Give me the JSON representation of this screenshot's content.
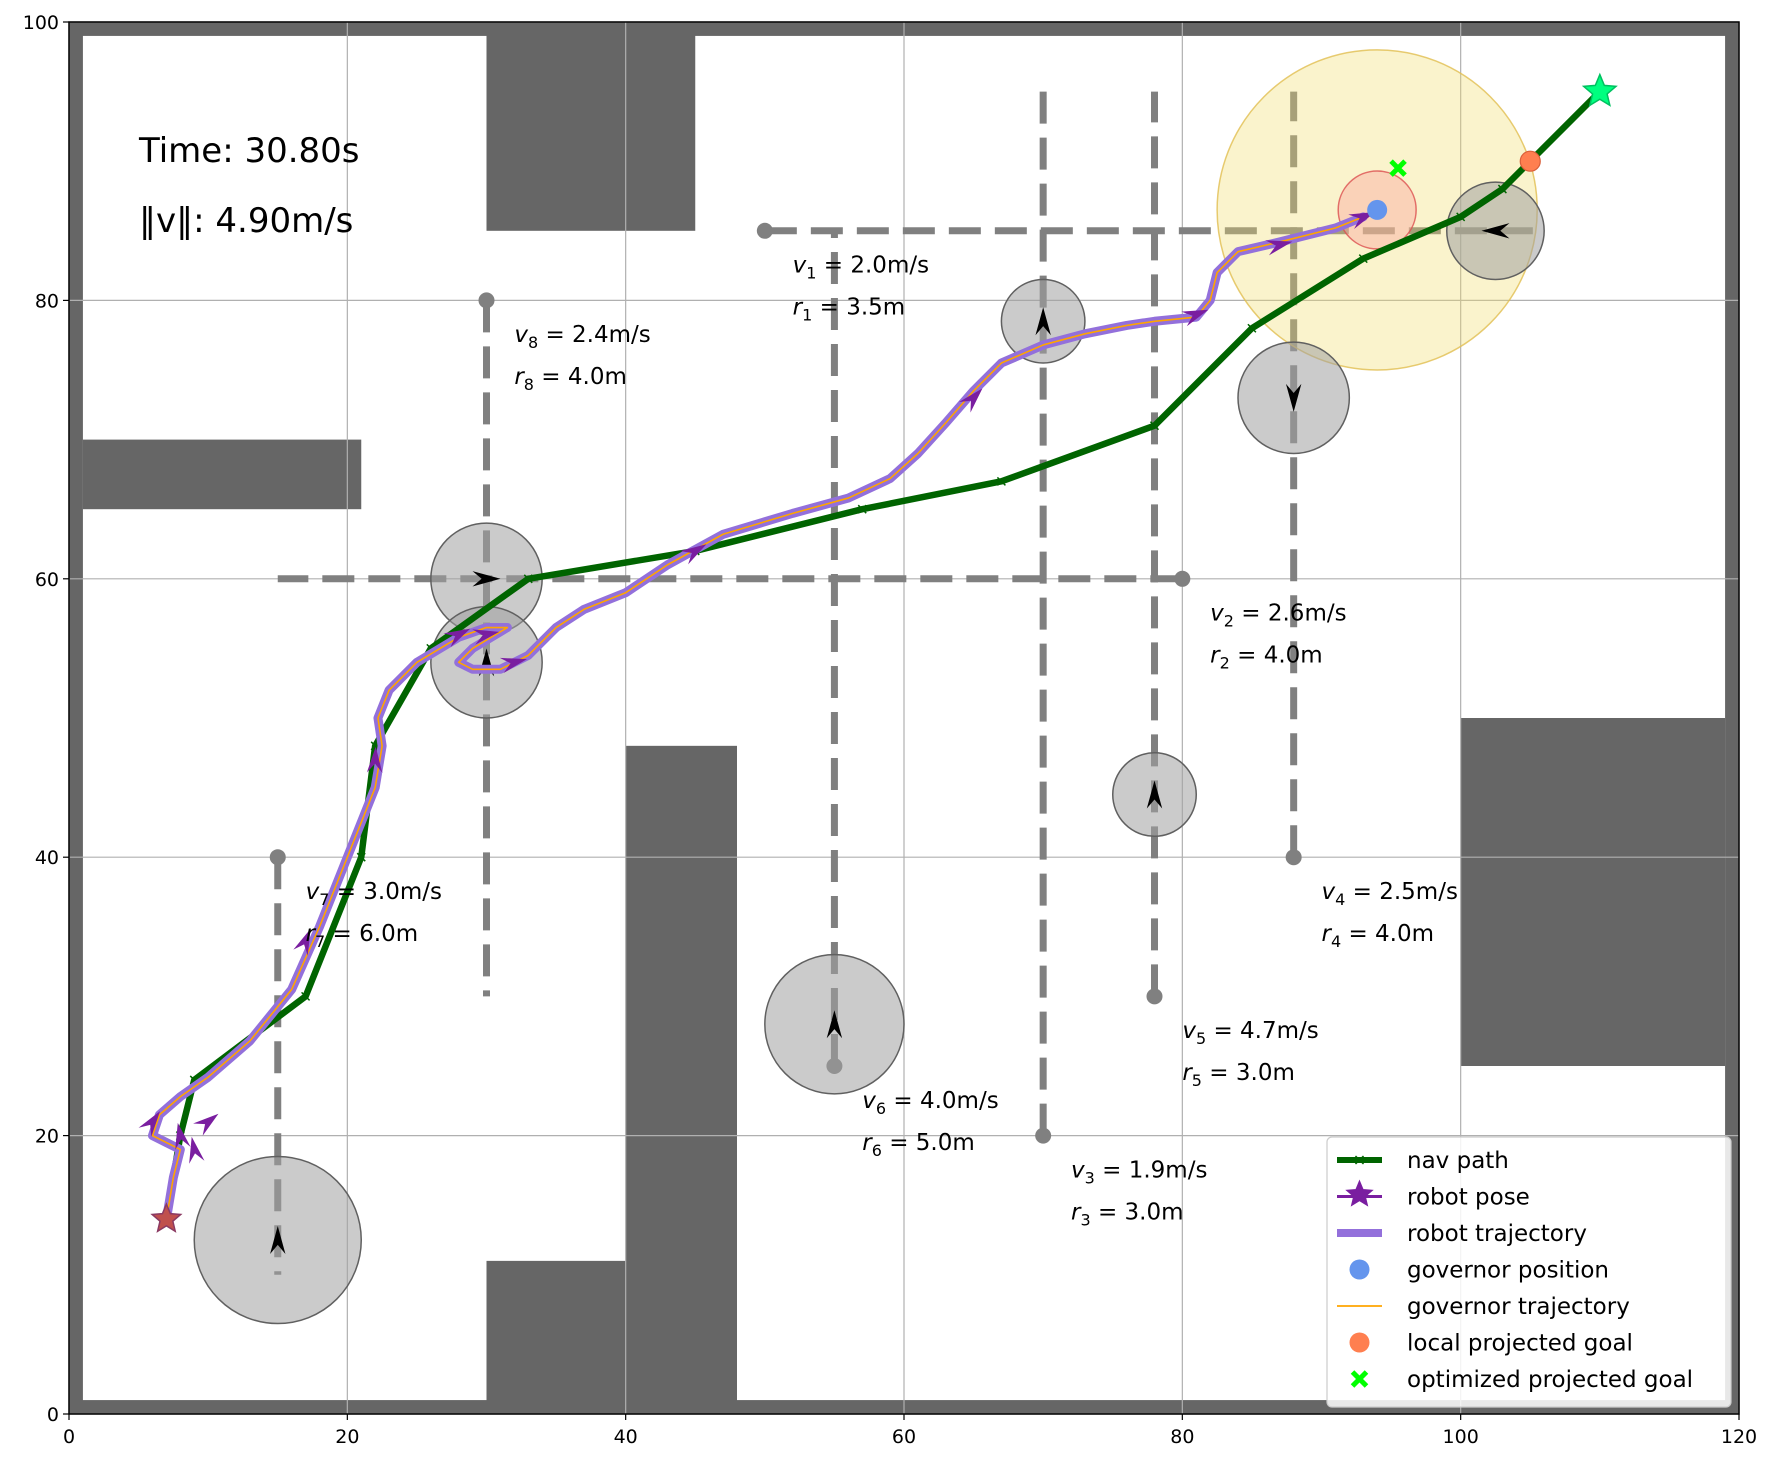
{
  "chart_data": {
    "type": "scatter",
    "title": "",
    "xlabel": "",
    "ylabel": "",
    "xlim": [
      0,
      120
    ],
    "ylim": [
      0,
      100
    ],
    "xticks": [
      0,
      20,
      40,
      60,
      80,
      100,
      120
    ],
    "yticks": [
      0,
      20,
      40,
      60,
      80,
      100
    ],
    "grid": true,
    "legend_position": "lower-right",
    "time_text": "Time: 30.80s",
    "speed_text": "‖v‖: 4.90m/s",
    "colors": {
      "obstacle": "#666666",
      "nav_path": "#006400",
      "robot_pose": "#7a1ea0",
      "robot_trajectory": "#9370db",
      "governor_position": "#6495ed",
      "governor_trajectory": "#ffa500",
      "local_projected_goal": "#ff7f50",
      "optimized_projected_goal": "#00ff00",
      "goal_star": "#00ff7f"
    },
    "walls": [
      {
        "x0": 0,
        "y0": 0,
        "x1": 120,
        "y1": 1
      },
      {
        "x0": 0,
        "y0": 99,
        "x1": 120,
        "y1": 100
      },
      {
        "x0": 0,
        "y0": 0,
        "x1": 1,
        "y1": 100
      },
      {
        "x0": 119,
        "y0": 0,
        "x1": 120,
        "y1": 100
      },
      {
        "x0": 30,
        "y0": 85,
        "x1": 45,
        "y1": 100
      },
      {
        "x0": 1,
        "y0": 65,
        "x1": 21,
        "y1": 70
      },
      {
        "x0": 40,
        "y0": 0,
        "x1": 48,
        "y1": 48
      },
      {
        "x0": 30,
        "y0": 0,
        "x1": 40,
        "y1": 11
      },
      {
        "x0": 100,
        "y0": 25,
        "x1": 119,
        "y1": 50
      }
    ],
    "dynamic_obstacles": [
      {
        "id": 1,
        "speed_label": "2.0m/s",
        "radius_label": "3.5m",
        "track": [
          [
            50,
            85
          ],
          [
            106,
            85
          ]
        ],
        "circle": [
          102.5,
          85,
          3.5
        ],
        "heading": "left",
        "label_pos": [
          52,
          82
        ]
      },
      {
        "id": 2,
        "speed_label": "2.6m/s",
        "radius_label": "4.0m",
        "track": [
          [
            80,
            60
          ],
          [
            15,
            60
          ]
        ],
        "circle": [
          30,
          60,
          4.0
        ],
        "heading": "right",
        "label_pos": [
          82,
          57
        ]
      },
      {
        "id": 3,
        "speed_label": "1.9m/s",
        "radius_label": "3.0m",
        "track": [
          [
            70,
            20
          ],
          [
            70,
            95
          ]
        ],
        "circle": [
          70,
          78.5,
          3.0
        ],
        "heading": "up",
        "label_pos": [
          72,
          17
        ]
      },
      {
        "id": 4,
        "speed_label": "2.5m/s",
        "radius_label": "4.0m",
        "track": [
          [
            88,
            40
          ],
          [
            88,
            95
          ]
        ],
        "circle": [
          88,
          73,
          4.0
        ],
        "heading": "down",
        "label_pos": [
          90,
          37
        ]
      },
      {
        "id": 5,
        "speed_label": "4.7m/s",
        "radius_label": "3.0m",
        "track": [
          [
            78,
            30
          ],
          [
            78,
            95
          ]
        ],
        "circle": [
          78,
          44.5,
          3.0
        ],
        "heading": "up",
        "label_pos": [
          80,
          27
        ]
      },
      {
        "id": 6,
        "speed_label": "4.0m/s",
        "radius_label": "5.0m",
        "track": [
          [
            55,
            25
          ],
          [
            55,
            85
          ]
        ],
        "circle": [
          55,
          28,
          5.0
        ],
        "heading": "up",
        "label_pos": [
          57,
          22
        ]
      },
      {
        "id": 7,
        "speed_label": "3.0m/s",
        "radius_label": "6.0m",
        "track": [
          [
            15,
            40
          ],
          [
            15,
            10
          ]
        ],
        "circle": [
          15,
          12.5,
          6.0
        ],
        "heading": "up",
        "label_pos": [
          17,
          37
        ]
      },
      {
        "id": 8,
        "speed_label": "2.4m/s",
        "radius_label": "4.0m",
        "track": [
          [
            30,
            80
          ],
          [
            30,
            30
          ]
        ],
        "circle": [
          30,
          54,
          4.0
        ],
        "heading": "up",
        "label_pos": [
          32,
          77
        ]
      }
    ],
    "nav_path": [
      [
        7,
        14
      ],
      [
        8,
        20
      ],
      [
        9,
        24
      ],
      [
        17,
        30
      ],
      [
        21,
        40
      ],
      [
        22,
        48
      ],
      [
        26,
        55
      ],
      [
        33,
        60
      ],
      [
        45,
        62
      ],
      [
        57,
        65
      ],
      [
        67,
        67
      ],
      [
        78,
        71
      ],
      [
        85,
        78
      ],
      [
        93,
        83
      ],
      [
        100,
        86
      ],
      [
        103,
        88
      ],
      [
        110,
        95
      ]
    ],
    "robot_trajectory": [
      [
        7,
        14
      ],
      [
        7.5,
        17
      ],
      [
        8,
        19
      ],
      [
        7,
        19.5
      ],
      [
        6,
        20
      ],
      [
        6.5,
        21.5
      ],
      [
        8,
        22.8
      ],
      [
        10,
        24.2
      ],
      [
        13,
        26.8
      ],
      [
        16,
        30.5
      ],
      [
        18,
        35
      ],
      [
        20,
        40
      ],
      [
        22,
        45
      ],
      [
        22.5,
        48
      ],
      [
        22.2,
        50
      ],
      [
        23,
        52
      ],
      [
        25,
        54
      ],
      [
        28,
        55.8
      ],
      [
        30,
        56.5
      ],
      [
        31.5,
        56.5
      ],
      [
        29,
        55
      ],
      [
        28,
        54
      ],
      [
        29,
        53.5
      ],
      [
        31,
        53.5
      ],
      [
        33,
        54.5
      ],
      [
        35,
        56.5
      ],
      [
        37,
        57.8
      ],
      [
        40,
        59
      ],
      [
        43,
        61
      ],
      [
        47,
        63.2
      ],
      [
        52,
        64.7
      ],
      [
        56,
        65.8
      ],
      [
        59,
        67.2
      ],
      [
        61,
        69
      ],
      [
        63,
        71.2
      ],
      [
        65,
        73.5
      ],
      [
        67,
        75.5
      ],
      [
        70,
        76.8
      ],
      [
        73,
        77.6
      ],
      [
        76,
        78.2
      ],
      [
        78,
        78.5
      ],
      [
        81,
        78.8
      ],
      [
        82,
        80
      ],
      [
        82.5,
        82
      ],
      [
        84,
        83.5
      ],
      [
        87,
        84.2
      ],
      [
        91,
        85.2
      ],
      [
        93,
        86
      ]
    ],
    "robot_poses": [
      [
        8,
        20
      ],
      [
        6,
        21
      ],
      [
        9,
        19
      ],
      [
        10,
        21
      ],
      [
        17,
        34
      ],
      [
        22,
        47
      ],
      [
        28,
        56
      ],
      [
        30,
        56
      ],
      [
        32,
        54
      ],
      [
        45,
        62
      ],
      [
        65,
        73
      ],
      [
        81,
        79
      ],
      [
        87,
        84
      ],
      [
        93,
        86
      ]
    ],
    "governor_position": [
      94,
      86.5
    ],
    "governor_local_circle": [
      94,
      86.5,
      2.8
    ],
    "governor_reach_circle": [
      94,
      86.5,
      11.5
    ],
    "local_projected_goal": [
      105,
      90
    ],
    "optimized_projected_goal": [
      95.5,
      89.5
    ],
    "goal": [
      110,
      95
    ],
    "start": [
      7,
      14
    ],
    "legend": [
      {
        "key": "nav_path",
        "label": "nav path"
      },
      {
        "key": "robot_pose",
        "label": "robot pose"
      },
      {
        "key": "robot_trajectory",
        "label": "robot trajectory"
      },
      {
        "key": "governor_position",
        "label": "governor position"
      },
      {
        "key": "governor_trajectory",
        "label": "governor trajectory"
      },
      {
        "key": "local_projected_goal",
        "label": "local projected goal"
      },
      {
        "key": "optimized_projected_goal",
        "label": "optimized projected goal"
      }
    ]
  }
}
